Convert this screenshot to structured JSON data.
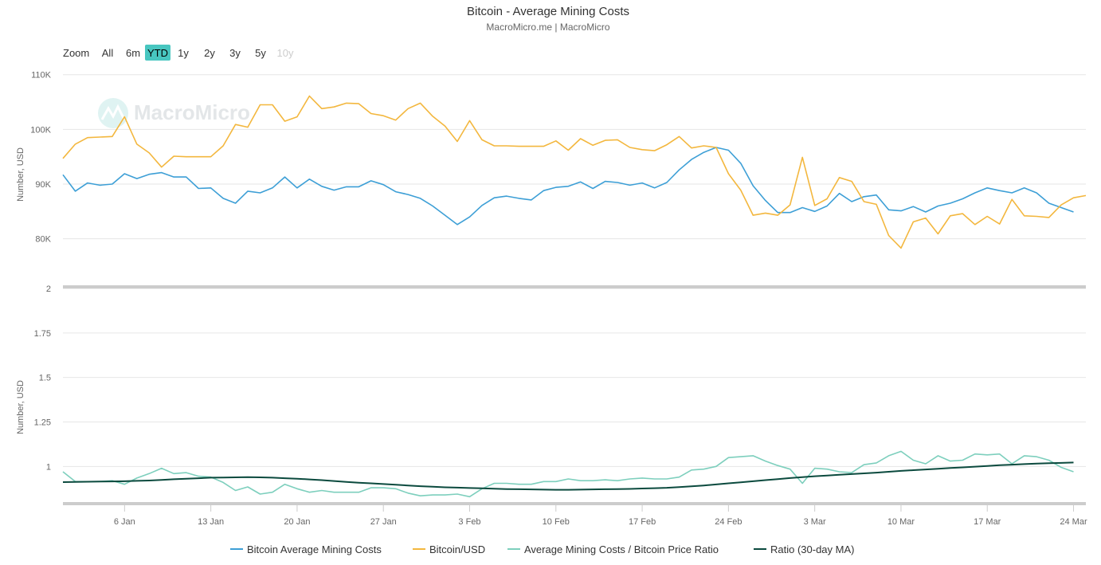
{
  "title": "Bitcoin - Average Mining Costs",
  "subtitle": "MacroMicro.me | MacroMicro",
  "watermark": "MacroMicro",
  "zoom": {
    "label": "Zoom",
    "buttons": [
      {
        "label": "All",
        "state": "normal"
      },
      {
        "label": "6m",
        "state": "normal"
      },
      {
        "label": "YTD",
        "state": "active"
      },
      {
        "label": "1y",
        "state": "normal"
      },
      {
        "label": "2y",
        "state": "normal"
      },
      {
        "label": "3y",
        "state": "normal"
      },
      {
        "label": "5y",
        "state": "normal"
      },
      {
        "label": "10y",
        "state": "disabled"
      }
    ]
  },
  "colors": {
    "mining": "#3d9fd6",
    "btc": "#f3b73e",
    "ratio": "#7dcfbd",
    "ratio_ma": "#0b4a3e",
    "active_button": "#48c6c0",
    "grid": "#e6e6e6"
  },
  "chart_data": {
    "type": "line",
    "x_axis": {
      "type": "date",
      "range": [
        "2025-01-01",
        "2025-03-25"
      ],
      "ticks": [
        {
          "date": "2025-01-06",
          "label": "6 Jan"
        },
        {
          "date": "2025-01-13",
          "label": "13 Jan"
        },
        {
          "date": "2025-01-20",
          "label": "20 Jan"
        },
        {
          "date": "2025-01-27",
          "label": "27 Jan"
        },
        {
          "date": "2025-02-03",
          "label": "3 Feb"
        },
        {
          "date": "2025-02-10",
          "label": "10 Feb"
        },
        {
          "date": "2025-02-17",
          "label": "17 Feb"
        },
        {
          "date": "2025-02-24",
          "label": "24 Feb"
        },
        {
          "date": "2025-03-03",
          "label": "3 Mar"
        },
        {
          "date": "2025-03-10",
          "label": "10 Mar"
        },
        {
          "date": "2025-03-17",
          "label": "17 Mar"
        },
        {
          "date": "2025-03-24",
          "label": "24 Mar"
        }
      ]
    },
    "panels": [
      {
        "ylabel": "Number, USD",
        "ylim": [
          71500,
          112000
        ],
        "y_ticks": [
          {
            "value": 80000,
            "label": "80K"
          },
          {
            "value": 90000,
            "label": "90K"
          },
          {
            "value": 100000,
            "label": "100K"
          },
          {
            "value": 110000,
            "label": "110K"
          }
        ],
        "series": [
          {
            "name": "Bitcoin Average Mining Costs",
            "color_key": "mining",
            "start_date": "2025-01-01",
            "values": [
              91700,
              88700,
              90200,
              89800,
              90000,
              91900,
              91000,
              91800,
              92100,
              91300,
              91300,
              89200,
              89300,
              87400,
              86500,
              88700,
              88400,
              89300,
              91300,
              89300,
              90900,
              89600,
              88900,
              89500,
              89500,
              90600,
              89900,
              88600,
              88100,
              87400,
              86000,
              84300,
              82600,
              84000,
              86100,
              87500,
              87800,
              87400,
              87100,
              88800,
              89400,
              89600,
              90400,
              89200,
              90500,
              90300,
              89800,
              90200,
              89300,
              90300,
              92600,
              94500,
              95800,
              96700,
              96200,
              93800,
              89700,
              87000,
              84800,
              84800,
              85700,
              85000,
              86000,
              88300,
              86800,
              87700,
              88000,
              85300,
              85100,
              85900,
              84900,
              86000,
              86500,
              87300,
              88400,
              89300,
              88800,
              88400,
              89300,
              88400,
              86500,
              85700,
              84900
            ]
          },
          {
            "name": "Bitcoin/USD",
            "color_key": "btc",
            "start_date": "2025-01-01",
            "values": [
              94700,
              97300,
              98500,
              98600,
              98700,
              102300,
              97300,
              95700,
              93100,
              95100,
              95000,
              95000,
              95000,
              97000,
              100900,
              100400,
              104500,
              104500,
              101500,
              102300,
              106100,
              103800,
              104100,
              104800,
              104700,
              102900,
              102500,
              101700,
              103800,
              104800,
              102400,
              100600,
              97800,
              101600,
              98100,
              97000,
              97000,
              96900,
              96900,
              96900,
              97900,
              96200,
              98300,
              97100,
              98000,
              98100,
              96700,
              96300,
              96100,
              97200,
              98700,
              96600,
              97000,
              96700,
              91900,
              88900,
              84300,
              84700,
              84300,
              86200,
              94900,
              86100,
              87300,
              91200,
              90500,
              86800,
              86300,
              80600,
              78300,
              83100,
              83800,
              80900,
              84200,
              84600,
              82600,
              84100,
              82700,
              87200,
              84200,
              84100,
              83900,
              86200,
              87500,
              87900
            ]
          }
        ]
      },
      {
        "ylabel": "Number, USD",
        "ylim": [
          0.8,
          2.0
        ],
        "y_ticks": [
          {
            "value": 1,
            "label": "1"
          },
          {
            "value": 1.25,
            "label": "1.25"
          },
          {
            "value": 1.5,
            "label": "1.5"
          },
          {
            "value": 1.75,
            "label": "1.75"
          },
          {
            "value": 2,
            "label": "2"
          }
        ],
        "series": [
          {
            "name": "Average Mining Costs / Bitcoin Price Ratio",
            "color_key": "ratio",
            "start_date": "2025-01-01",
            "values": [
              0.97,
              0.915,
              0.915,
              0.915,
              0.92,
              0.9,
              0.935,
              0.96,
              0.99,
              0.96,
              0.965,
              0.945,
              0.94,
              0.91,
              0.865,
              0.885,
              0.845,
              0.855,
              0.9,
              0.875,
              0.855,
              0.865,
              0.855,
              0.855,
              0.855,
              0.88,
              0.88,
              0.875,
              0.85,
              0.835,
              0.84,
              0.84,
              0.845,
              0.83,
              0.875,
              0.905,
              0.905,
              0.9,
              0.9,
              0.915,
              0.915,
              0.93,
              0.92,
              0.92,
              0.925,
              0.92,
              0.93,
              0.935,
              0.93,
              0.93,
              0.94,
              0.98,
              0.985,
              1.0,
              1.05,
              1.055,
              1.06,
              1.03,
              1.005,
              0.985,
              0.905,
              0.99,
              0.985,
              0.97,
              0.965,
              1.01,
              1.02,
              1.06,
              1.085,
              1.035,
              1.015,
              1.06,
              1.03,
              1.035,
              1.07,
              1.065,
              1.07,
              1.015,
              1.06,
              1.055,
              1.035,
              0.995,
              0.97
            ]
          },
          {
            "name": "Ratio (30-day MA)",
            "color_key": "ratio_ma",
            "start_date": "2025-01-01",
            "values": [
              0.912,
              0.913,
              0.914,
              0.915,
              0.916,
              0.917,
              0.919,
              0.921,
              0.924,
              0.928,
              0.931,
              0.934,
              0.937,
              0.938,
              0.939,
              0.94,
              0.939,
              0.937,
              0.934,
              0.931,
              0.927,
              0.923,
              0.918,
              0.913,
              0.909,
              0.905,
              0.901,
              0.897,
              0.893,
              0.889,
              0.886,
              0.883,
              0.881,
              0.879,
              0.877,
              0.875,
              0.873,
              0.872,
              0.871,
              0.87,
              0.869,
              0.869,
              0.87,
              0.871,
              0.872,
              0.873,
              0.874,
              0.876,
              0.878,
              0.88,
              0.884,
              0.888,
              0.893,
              0.899,
              0.905,
              0.911,
              0.917,
              0.923,
              0.929,
              0.935,
              0.94,
              0.945,
              0.949,
              0.953,
              0.957,
              0.961,
              0.965,
              0.97,
              0.975,
              0.979,
              0.983,
              0.987,
              0.991,
              0.995,
              0.999,
              1.003,
              1.007,
              1.01,
              1.013,
              1.016,
              1.018,
              1.02,
              1.022
            ]
          }
        ]
      }
    ],
    "legend": {
      "position": "bottom-center",
      "items": [
        {
          "name": "Bitcoin Average Mining Costs",
          "color_key": "mining"
        },
        {
          "name": "Bitcoin/USD",
          "color_key": "btc"
        },
        {
          "name": "Average Mining Costs / Bitcoin Price Ratio",
          "color_key": "ratio"
        },
        {
          "name": "Ratio (30-day MA)",
          "color_key": "ratio_ma"
        }
      ]
    },
    "grid": true
  }
}
